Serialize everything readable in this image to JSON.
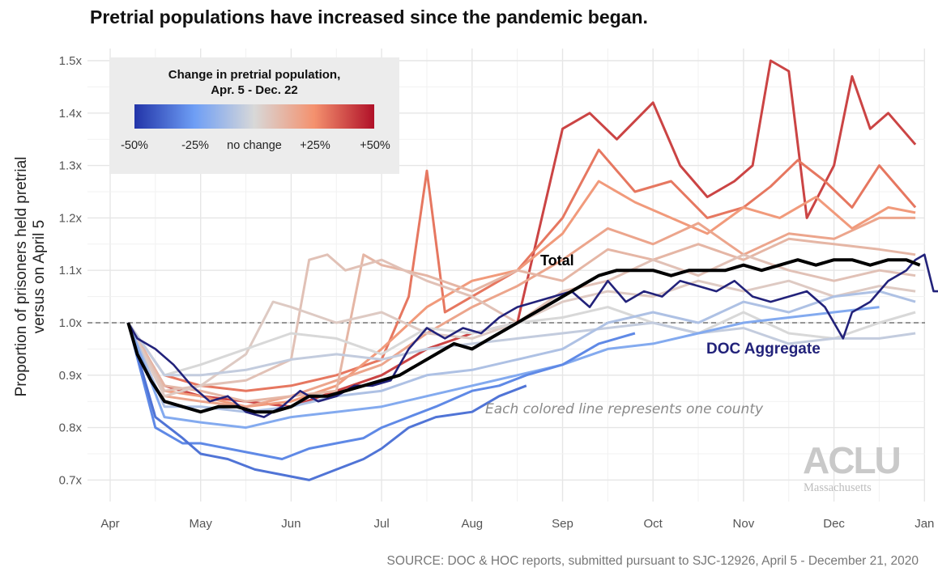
{
  "title": "Pretrial populations have increased since the pandemic began.",
  "source": "SOURCE: DOC & HOC reports, submitted pursuant to SJC-12926, April 5 - December 21, 2020",
  "logo": {
    "main": "ACLU",
    "sub": "Massachusetts"
  },
  "legend": {
    "title_line1": "Change in pretrial population,",
    "title_line2": "Apr. 5 - Dec. 22",
    "ticks": [
      "-50%",
      "-25%",
      "no change",
      "+25%",
      "+50%"
    ],
    "colors": [
      "#2234a8",
      "#6e9ef5",
      "#d8d8d8",
      "#f4916e",
      "#b01028"
    ]
  },
  "chart_data": {
    "type": "line",
    "title": "Pretrial populations have increased since the pandemic began.",
    "ylabel": "Proportion of prisoners held pretrial versus on April 5",
    "ylabel_line1": "Proportion of prisoners held pretrial",
    "ylabel_line2": "versus on April 5",
    "xlabel": "",
    "x_ticks": [
      "Apr",
      "May",
      "Jun",
      "Jul",
      "Aug",
      "Sep",
      "Oct",
      "Nov",
      "Dec",
      "Jan"
    ],
    "y_ticks": [
      "0.7x",
      "0.8x",
      "0.9x",
      "1.0x",
      "1.1x",
      "1.2x",
      "1.3x",
      "1.4x",
      "1.5x"
    ],
    "y_tick_values": [
      0.7,
      0.8,
      0.9,
      1.0,
      1.1,
      1.2,
      1.3,
      1.4,
      1.5
    ],
    "ylim": [
      0.67,
      1.52
    ],
    "xlim": [
      0,
      9.3
    ],
    "baseline": 1.0,
    "grid": true,
    "legend_position": "top-left",
    "annotations": {
      "total": "Total",
      "doc": "DOC Aggregate",
      "note": "Each colored line represents one county"
    },
    "highlight_series": [
      {
        "name": "Total",
        "color": "#000000",
        "x": [
          0.2,
          0.3,
          0.45,
          0.6,
          0.8,
          1.0,
          1.2,
          1.4,
          1.6,
          1.8,
          2.0,
          2.2,
          2.4,
          2.6,
          2.8,
          3.0,
          3.2,
          3.4,
          3.6,
          3.8,
          4.0,
          4.2,
          4.4,
          4.6,
          4.8,
          5.0,
          5.2,
          5.4,
          5.6,
          5.8,
          6.0,
          6.2,
          6.4,
          6.6,
          6.8,
          7.0,
          7.2,
          7.4,
          7.6,
          7.8,
          8.0,
          8.2,
          8.4,
          8.6,
          8.8,
          8.95
        ],
        "y": [
          1.0,
          0.94,
          0.89,
          0.85,
          0.84,
          0.83,
          0.84,
          0.84,
          0.83,
          0.83,
          0.84,
          0.86,
          0.86,
          0.87,
          0.88,
          0.89,
          0.9,
          0.92,
          0.94,
          0.96,
          0.95,
          0.97,
          0.99,
          1.01,
          1.03,
          1.05,
          1.07,
          1.09,
          1.1,
          1.1,
          1.1,
          1.09,
          1.1,
          1.1,
          1.1,
          1.11,
          1.1,
          1.11,
          1.12,
          1.11,
          1.12,
          1.12,
          1.11,
          1.12,
          1.12,
          1.11
        ]
      },
      {
        "name": "DOC Aggregate",
        "color": "#22227a",
        "x": [
          0.2,
          0.3,
          0.5,
          0.7,
          0.9,
          1.1,
          1.3,
          1.5,
          1.7,
          1.9,
          2.1,
          2.3,
          2.5,
          2.7,
          2.9,
          3.1,
          3.3,
          3.5,
          3.7,
          3.9,
          4.1,
          4.3,
          4.5,
          4.7,
          4.9,
          5.1,
          5.3,
          5.5,
          5.7,
          5.9,
          6.1,
          6.3,
          6.5,
          6.7,
          6.9,
          7.1,
          7.3,
          7.5,
          7.7,
          7.9,
          8.0,
          8.1,
          8.2,
          8.3,
          8.4,
          8.5,
          8.6,
          8.7,
          8.8,
          8.9,
          9.0,
          9.1,
          9.2
        ],
        "y": [
          1.0,
          0.97,
          0.95,
          0.92,
          0.88,
          0.85,
          0.86,
          0.83,
          0.82,
          0.84,
          0.87,
          0.85,
          0.86,
          0.88,
          0.88,
          0.89,
          0.95,
          0.99,
          0.97,
          0.99,
          0.98,
          1.01,
          1.03,
          1.04,
          1.05,
          1.06,
          1.03,
          1.08,
          1.04,
          1.06,
          1.05,
          1.08,
          1.07,
          1.06,
          1.08,
          1.05,
          1.04,
          1.05,
          1.06,
          1.03,
          1.0,
          0.97,
          1.02,
          1.03,
          1.04,
          1.06,
          1.08,
          1.09,
          1.1,
          1.12,
          1.13,
          1.06,
          1.06
        ]
      }
    ],
    "county_series": [
      {
        "change": 0.4,
        "x": [
          0.2,
          0.6,
          1.0,
          1.5,
          2.0,
          2.5,
          3.0,
          3.5,
          4.0,
          4.5,
          5.0,
          5.3,
          5.6,
          6.0,
          6.3,
          6.6,
          6.9,
          7.1,
          7.3,
          7.5,
          7.7,
          8.0,
          8.2,
          8.4,
          8.6,
          8.9
        ],
        "y": [
          1.0,
          0.88,
          0.86,
          0.85,
          0.84,
          0.87,
          0.9,
          0.95,
          0.98,
          1.0,
          1.37,
          1.4,
          1.35,
          1.42,
          1.3,
          1.24,
          1.27,
          1.3,
          1.5,
          1.48,
          1.2,
          1.3,
          1.47,
          1.37,
          1.4,
          1.34
        ]
      },
      {
        "change": 0.3,
        "x": [
          0.2,
          0.6,
          1.0,
          1.5,
          2.0,
          2.5,
          3.0,
          3.3,
          3.5,
          3.7,
          4.0,
          4.5,
          5.0,
          5.4,
          5.8,
          6.2,
          6.6,
          7.0,
          7.3,
          7.6,
          7.9,
          8.2,
          8.5,
          8.9
        ],
        "y": [
          1.0,
          0.9,
          0.88,
          0.87,
          0.88,
          0.9,
          0.93,
          1.05,
          1.29,
          1.02,
          1.05,
          1.1,
          1.2,
          1.33,
          1.25,
          1.27,
          1.2,
          1.22,
          1.26,
          1.31,
          1.27,
          1.22,
          1.3,
          1.22
        ]
      },
      {
        "change": 0.22,
        "x": [
          0.2,
          0.6,
          1.0,
          1.5,
          2.0,
          2.5,
          3.0,
          3.5,
          4.0,
          4.5,
          5.0,
          5.4,
          5.8,
          6.2,
          6.6,
          7.0,
          7.4,
          7.8,
          8.2,
          8.6,
          8.9
        ],
        "y": [
          1.0,
          0.87,
          0.86,
          0.84,
          0.85,
          0.88,
          0.95,
          1.03,
          1.08,
          1.1,
          1.17,
          1.27,
          1.23,
          1.2,
          1.17,
          1.22,
          1.2,
          1.24,
          1.18,
          1.22,
          1.21
        ]
      },
      {
        "change": 0.18,
        "x": [
          0.2,
          0.6,
          1.0,
          1.5,
          2.0,
          2.5,
          3.0,
          3.5,
          4.0,
          4.5,
          5.0,
          5.5,
          6.0,
          6.5,
          7.0,
          7.5,
          8.0,
          8.5,
          8.9
        ],
        "y": [
          1.0,
          0.86,
          0.85,
          0.84,
          0.86,
          0.89,
          0.92,
          0.98,
          1.03,
          1.07,
          1.12,
          1.18,
          1.15,
          1.19,
          1.13,
          1.17,
          1.16,
          1.2,
          1.2
        ]
      },
      {
        "change": 0.12,
        "x": [
          0.2,
          0.6,
          1.0,
          1.5,
          2.0,
          2.5,
          2.8,
          3.0,
          3.5,
          4.0,
          4.5,
          5.0,
          5.5,
          6.0,
          6.5,
          7.0,
          7.5,
          8.0,
          8.5,
          8.9
        ],
        "y": [
          1.0,
          0.88,
          0.87,
          0.85,
          0.86,
          0.87,
          1.13,
          1.11,
          1.09,
          1.06,
          1.1,
          1.08,
          1.14,
          1.12,
          1.15,
          1.12,
          1.16,
          1.15,
          1.14,
          1.13
        ]
      },
      {
        "change": 0.08,
        "x": [
          0.2,
          0.6,
          1.0,
          1.5,
          2.0,
          2.2,
          2.4,
          2.6,
          3.0,
          3.5,
          4.0,
          4.5,
          5.0,
          5.5,
          6.0,
          6.5,
          7.0,
          7.5,
          8.0,
          8.5,
          8.9
        ],
        "y": [
          1.0,
          0.87,
          0.88,
          0.89,
          0.93,
          1.12,
          1.13,
          1.1,
          1.12,
          1.08,
          1.05,
          1.0,
          1.06,
          1.08,
          1.12,
          1.09,
          1.13,
          1.1,
          1.08,
          1.1,
          1.09
        ]
      },
      {
        "change": 0.05,
        "x": [
          0.2,
          0.6,
          1.0,
          1.5,
          1.8,
          2.0,
          2.5,
          3.0,
          3.5,
          4.0,
          4.5,
          5.0,
          5.5,
          6.0,
          6.5,
          7.0,
          7.5,
          8.0,
          8.5,
          8.9
        ],
        "y": [
          1.0,
          0.86,
          0.88,
          0.94,
          1.04,
          1.03,
          1.0,
          1.02,
          0.98,
          0.97,
          1.0,
          1.04,
          1.06,
          1.05,
          1.08,
          1.06,
          1.08,
          1.05,
          1.07,
          1.06
        ]
      },
      {
        "change": 0.0,
        "x": [
          0.2,
          0.6,
          1.0,
          1.5,
          2.0,
          2.5,
          3.0,
          3.5,
          4.0,
          4.5,
          5.0,
          5.5,
          6.0,
          6.5,
          7.0,
          7.5,
          8.0,
          8.5,
          8.9
        ],
        "y": [
          1.0,
          0.9,
          0.92,
          0.95,
          0.98,
          0.97,
          0.94,
          0.99,
          0.98,
          1.0,
          1.01,
          1.03,
          1.0,
          0.98,
          1.02,
          0.98,
          0.97,
          1.0,
          1.02
        ]
      },
      {
        "change": -0.05,
        "x": [
          0.2,
          0.6,
          1.0,
          1.5,
          2.0,
          2.5,
          3.0,
          3.5,
          4.0,
          4.5,
          5.0,
          5.5,
          6.0,
          6.5,
          7.0,
          7.5,
          8.0,
          8.5,
          8.9
        ],
        "y": [
          1.0,
          0.9,
          0.9,
          0.91,
          0.93,
          0.94,
          0.93,
          0.95,
          0.96,
          0.97,
          0.98,
          0.99,
          1.0,
          0.98,
          0.99,
          0.96,
          0.97,
          0.97,
          0.98
        ]
      },
      {
        "change": -0.1,
        "x": [
          0.2,
          0.6,
          1.0,
          1.5,
          2.0,
          2.5,
          3.0,
          3.5,
          4.0,
          4.5,
          5.0,
          5.5,
          6.0,
          6.5,
          7.0,
          7.5,
          8.0,
          8.5,
          8.9
        ],
        "y": [
          1.0,
          0.84,
          0.84,
          0.83,
          0.84,
          0.86,
          0.87,
          0.9,
          0.91,
          0.93,
          0.95,
          1.0,
          1.02,
          1.0,
          1.04,
          1.02,
          1.05,
          1.06,
          1.04
        ]
      },
      {
        "change": -0.2,
        "x": [
          0.2,
          0.6,
          1.0,
          1.5,
          2.0,
          2.5,
          3.0,
          3.5,
          4.0,
          4.5,
          5.0,
          5.5,
          6.0,
          6.5,
          7.0,
          7.5,
          8.0,
          8.5
        ],
        "y": [
          1.0,
          0.82,
          0.81,
          0.8,
          0.82,
          0.83,
          0.84,
          0.86,
          0.88,
          0.9,
          0.92,
          0.95,
          0.96,
          0.98,
          1.0,
          1.01,
          1.02,
          1.03
        ]
      },
      {
        "change": -0.3,
        "x": [
          0.2,
          0.5,
          0.8,
          1.0,
          1.3,
          1.6,
          1.9,
          2.2,
          2.5,
          2.8,
          3.0,
          3.3,
          3.6,
          4.0,
          4.3,
          4.6,
          5.0,
          5.4,
          5.8
        ],
        "y": [
          1.0,
          0.8,
          0.77,
          0.77,
          0.76,
          0.75,
          0.74,
          0.76,
          0.77,
          0.78,
          0.8,
          0.82,
          0.84,
          0.87,
          0.88,
          0.9,
          0.92,
          0.96,
          0.98
        ]
      },
      {
        "change": -0.35,
        "x": [
          0.2,
          0.5,
          0.8,
          1.0,
          1.3,
          1.6,
          1.9,
          2.2,
          2.5,
          2.8,
          3.0,
          3.3,
          3.6,
          4.0,
          4.3,
          4.6
        ],
        "y": [
          1.0,
          0.82,
          0.78,
          0.75,
          0.74,
          0.72,
          0.71,
          0.7,
          0.72,
          0.74,
          0.76,
          0.8,
          0.82,
          0.83,
          0.86,
          0.88
        ]
      }
    ]
  }
}
